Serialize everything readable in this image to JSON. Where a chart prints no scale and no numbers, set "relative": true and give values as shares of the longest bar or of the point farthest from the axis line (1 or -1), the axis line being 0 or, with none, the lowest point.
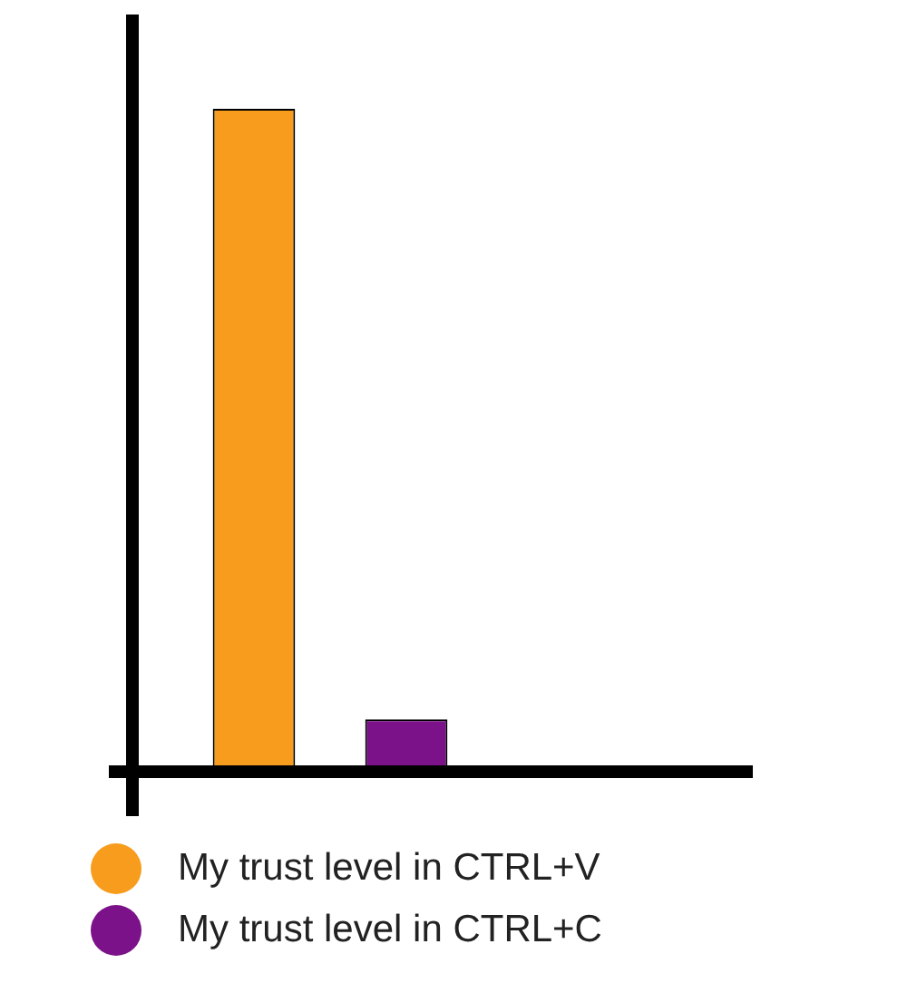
{
  "chart_data": {
    "type": "bar",
    "relative": true,
    "categories": [
      null,
      null
    ],
    "legend": "bottom",
    "stacked": true,
    "series": [
      {
        "name": "My trust level in CTRL+V",
        "color": "#f79c1c",
        "values": [
          1,
          null
        ]
      },
      {
        "name": "My trust level in CTRL+C",
        "color": "#7c1289",
        "values": [
          null,
          0.07
        ]
      }
    ]
  }
}
